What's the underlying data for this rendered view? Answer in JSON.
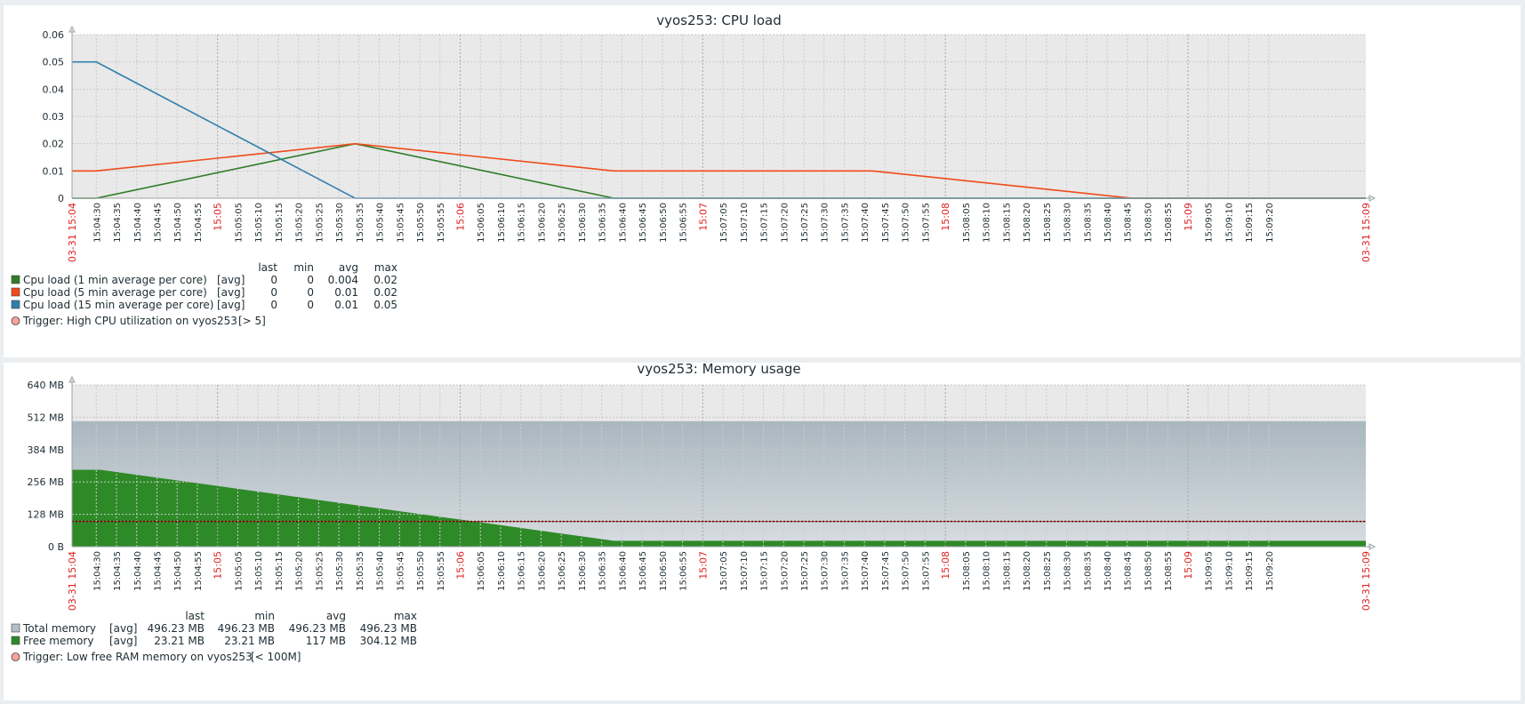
{
  "chart_data": [
    {
      "type": "line",
      "title": "vyos253: CPU load",
      "x_start": "03-31 15:04",
      "x_end": "03-31 15:09",
      "x_range_seconds": [
        0,
        320
      ],
      "ylim": [
        0,
        0.06
      ],
      "yticks": [
        "0",
        "0.01",
        "0.02",
        "0.03",
        "0.04",
        "0.05",
        "0.06"
      ],
      "ytick_values": [
        0,
        0.01,
        0.02,
        0.03,
        0.04,
        0.05,
        0.06
      ],
      "grid": true,
      "legend_columns": [
        "last",
        "min",
        "avg",
        "max"
      ],
      "series": [
        {
          "name": "Cpu load (1 min average per core)",
          "func": "[avg]",
          "color": "#2e7d27",
          "points": [
            [
              0,
              0
            ],
            [
              6,
              0
            ],
            [
              70,
              0.02
            ],
            [
              134,
              0
            ],
            [
              320,
              0
            ]
          ],
          "stats": [
            "0",
            "0",
            "0.004",
            "0.02"
          ]
        },
        {
          "name": "Cpu load (5 min average per core)",
          "func": "[avg]",
          "color": "#f04a1a",
          "points": [
            [
              0,
              0.01
            ],
            [
              6,
              0.01
            ],
            [
              70,
              0.02
            ],
            [
              134,
              0.01
            ],
            [
              198,
              0.01
            ],
            [
              262,
              0
            ],
            [
              320,
              0
            ]
          ],
          "stats": [
            "0",
            "0",
            "0.01",
            "0.02"
          ]
        },
        {
          "name": "Cpu load (15 min average per core)",
          "func": "[avg]",
          "color": "#2f7fad",
          "points": [
            [
              0,
              0.05
            ],
            [
              6,
              0.05
            ],
            [
              70,
              0
            ],
            [
              320,
              0
            ]
          ],
          "stats": [
            "0",
            "0",
            "0.01",
            "0.05"
          ]
        }
      ],
      "trigger": {
        "label": "Trigger: High CPU utilization on vyos253",
        "condition": "[> 5]",
        "color": "#f7a29a"
      }
    },
    {
      "type": "area",
      "title": "vyos253: Memory usage",
      "x_start": "03-31 15:04",
      "x_end": "03-31 15:09",
      "x_range_seconds": [
        0,
        320
      ],
      "ylim": [
        0,
        640
      ],
      "yticks": [
        "0 B",
        "128 MB",
        "256 MB",
        "384 MB",
        "512 MB",
        "640 MB"
      ],
      "ytick_values": [
        0,
        128,
        256,
        384,
        512,
        640
      ],
      "grid": true,
      "legend_columns": [
        "last",
        "min",
        "avg",
        "max"
      ],
      "series": [
        {
          "name": "Total memory",
          "func": "[avg]",
          "color": "#b4c0c7",
          "points": [
            [
              0,
              496.23
            ],
            [
              320,
              496.23
            ]
          ],
          "stats": [
            "496.23 MB",
            "496.23 MB",
            "496.23 MB",
            "496.23 MB"
          ]
        },
        {
          "name": "Free memory",
          "func": "[avg]",
          "color": "#2e8a27",
          "points": [
            [
              0,
              304.12
            ],
            [
              7,
              304.12
            ],
            [
              134,
              23.21
            ],
            [
              320,
              23.21
            ]
          ],
          "stats": [
            "23.21 MB",
            "23.21 MB",
            "117 MB",
            "304.12 MB"
          ]
        }
      ],
      "trigger": {
        "label": "Trigger: Low free RAM memory on vyos253",
        "condition": "[< 100M]",
        "color": "#f7a29a",
        "threshold_mb": 100
      }
    }
  ],
  "time_labels": [
    "15:04:30",
    "15:04:35",
    "15:04:40",
    "15:04:45",
    "15:04:50",
    "15:04:55",
    "15:05",
    "15:05:05",
    "15:05:10",
    "15:05:15",
    "15:05:20",
    "15:05:25",
    "15:05:30",
    "15:05:35",
    "15:05:40",
    "15:05:45",
    "15:05:50",
    "15:05:55",
    "15:06",
    "15:06:05",
    "15:06:10",
    "15:06:15",
    "15:06:20",
    "15:06:25",
    "15:06:30",
    "15:06:35",
    "15:06:40",
    "15:06:45",
    "15:06:50",
    "15:06:55",
    "15:07",
    "15:07:05",
    "15:07:10",
    "15:07:15",
    "15:07:20",
    "15:07:25",
    "15:07:30",
    "15:07:35",
    "15:07:40",
    "15:07:45",
    "15:07:50",
    "15:07:55",
    "15:08",
    "15:08:05",
    "15:08:10",
    "15:08:15",
    "15:08:20",
    "15:08:25",
    "15:08:30",
    "15:08:35",
    "15:08:40",
    "15:08:45",
    "15:08:50",
    "15:08:55",
    "15:09",
    "15:09:05",
    "15:09:10",
    "15:09:15",
    "15:09:20"
  ]
}
